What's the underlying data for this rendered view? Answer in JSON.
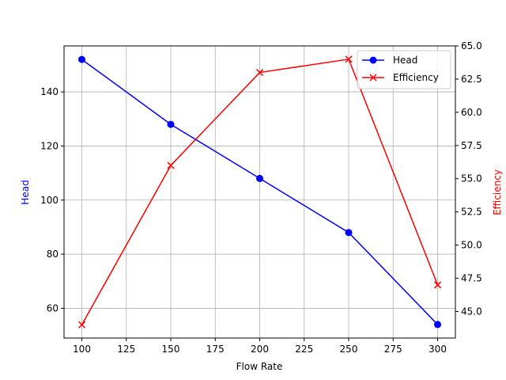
{
  "chart_data": {
    "type": "line",
    "title": "",
    "x": [
      100,
      150,
      200,
      250,
      300
    ],
    "xlabel": "Flow Rate",
    "xlim": [
      90,
      310
    ],
    "xticks": [
      100,
      125,
      150,
      175,
      200,
      225,
      250,
      275,
      300
    ],
    "grid": true,
    "legend_position": "upper right",
    "series": [
      {
        "name": "Head",
        "values": [
          152,
          128,
          108,
          88,
          54
        ],
        "color": "#0000ff",
        "marker": "o",
        "axis": "left"
      },
      {
        "name": "Efficiency",
        "values": [
          44,
          56,
          63,
          64,
          47
        ],
        "color": "#ff0000",
        "marker": "x",
        "axis": "right"
      }
    ],
    "y_left": {
      "label": "Head",
      "label_color": "#0000ff",
      "ylim": [
        49,
        157
      ],
      "ticks": [
        60,
        80,
        100,
        120,
        140
      ]
    },
    "y_right": {
      "label": "Efficiency",
      "label_color": "#ff0000",
      "ylim": [
        43,
        65
      ],
      "ticks": [
        "45.0",
        "47.5",
        "50.0",
        "52.5",
        "55.0",
        "57.5",
        "60.0",
        "62.5",
        "65.0"
      ]
    }
  }
}
